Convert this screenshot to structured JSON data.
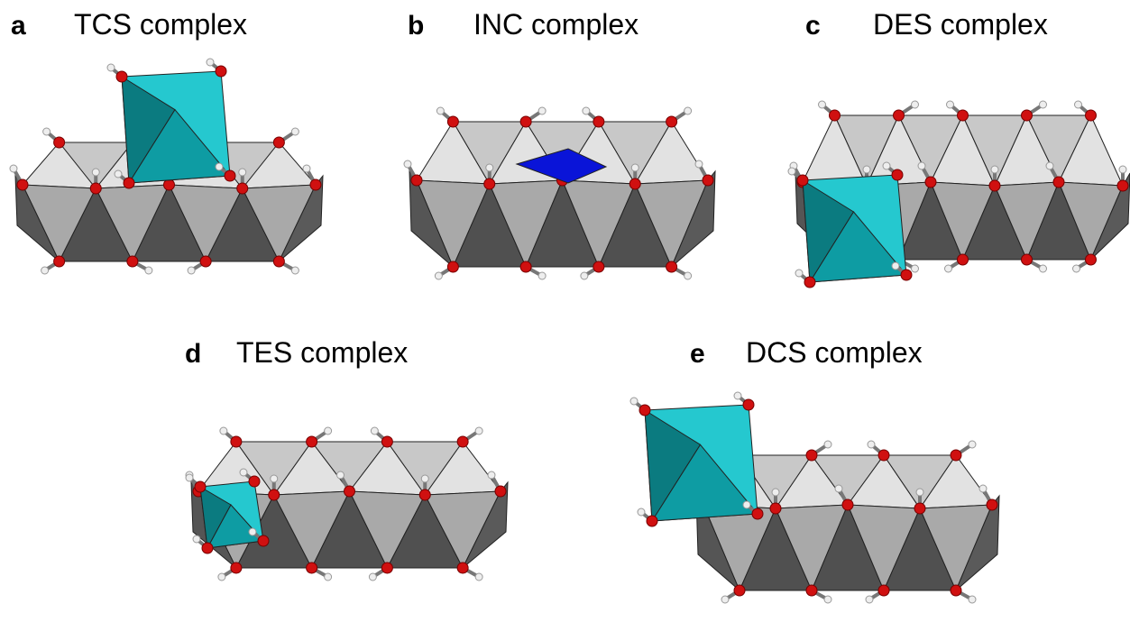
{
  "panels": [
    {
      "letter": "a",
      "title": "TCS complex"
    },
    {
      "letter": "b",
      "title": "INC complex"
    },
    {
      "letter": "c",
      "title": "DES complex"
    },
    {
      "letter": "d",
      "title": "TES complex"
    },
    {
      "letter": "e",
      "title": "DCS complex"
    }
  ]
}
